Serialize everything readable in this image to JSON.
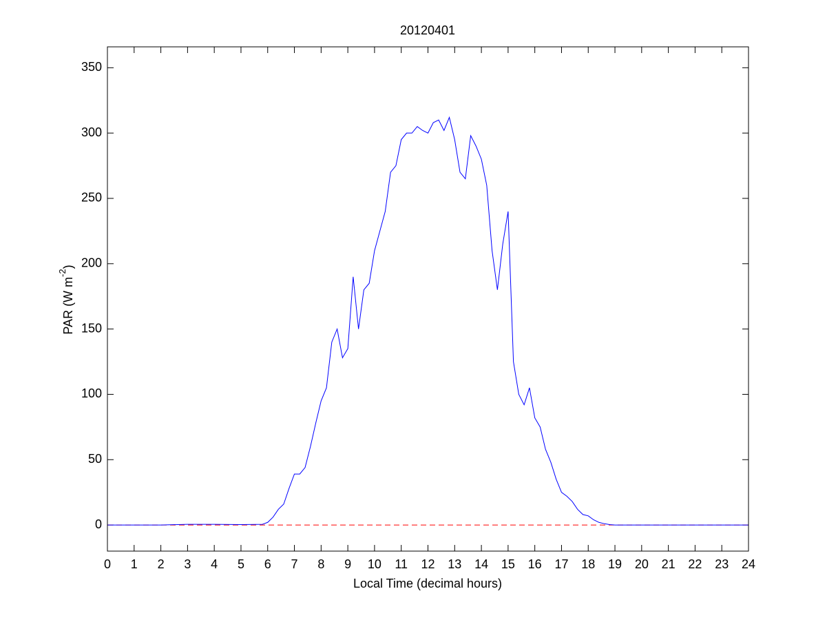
{
  "chart_data": {
    "type": "line",
    "title": "20120401",
    "x_label": "Local Time (decimal hours)",
    "y_label": "PAR (W m",
    "y_label_sup": "-2",
    "y_label_end": ")",
    "x": [
      0,
      1,
      2,
      3,
      4,
      5,
      5.8,
      6.0,
      6.2,
      6.4,
      6.6,
      6.8,
      7.0,
      7.2,
      7.4,
      7.6,
      7.8,
      8.0,
      8.2,
      8.4,
      8.6,
      8.8,
      9.0,
      9.2,
      9.4,
      9.6,
      9.8,
      10.0,
      10.2,
      10.4,
      10.6,
      10.8,
      11.0,
      11.2,
      11.4,
      11.6,
      11.8,
      12.0,
      12.2,
      12.4,
      12.6,
      12.8,
      13.0,
      13.2,
      13.4,
      13.6,
      13.8,
      14.0,
      14.2,
      14.4,
      14.6,
      14.8,
      15.0,
      15.2,
      15.4,
      15.6,
      15.8,
      16.0,
      16.2,
      16.4,
      16.6,
      16.8,
      17.0,
      17.2,
      17.4,
      17.6,
      17.8,
      18.0,
      18.2,
      18.4,
      18.6,
      18.8,
      19.0,
      20,
      21,
      22,
      23,
      24
    ],
    "series": [
      {
        "color": "#0000ff",
        "values": [
          0,
          0,
          0,
          0.5,
          0.5,
          0.3,
          0.5,
          2,
          6,
          12,
          16,
          28,
          39,
          39,
          44,
          60,
          78,
          95,
          105,
          140,
          150,
          128,
          135,
          190,
          150,
          180,
          185,
          210,
          225,
          240,
          270,
          275,
          295,
          300,
          300,
          305,
          302,
          300,
          308,
          310,
          302,
          312,
          295,
          270,
          265,
          298,
          290,
          280,
          260,
          210,
          180,
          215,
          240,
          125,
          100,
          92,
          105,
          82,
          75,
          58,
          48,
          35,
          25,
          22,
          18,
          12,
          8,
          7,
          4,
          2,
          1,
          0.3,
          0,
          0,
          0,
          0,
          0,
          0
        ]
      }
    ],
    "reference_line": {
      "value": 0,
      "color": "#ff0000",
      "dashed": true
    },
    "xlim": [
      0,
      24
    ],
    "ylim": [
      -20,
      366
    ],
    "xticks": [
      0,
      1,
      2,
      3,
      4,
      5,
      6,
      7,
      8,
      9,
      10,
      11,
      12,
      13,
      14,
      15,
      16,
      17,
      18,
      19,
      20,
      21,
      22,
      23,
      24
    ],
    "yticks": [
      0,
      50,
      100,
      150,
      200,
      250,
      300,
      350
    ],
    "grid": false
  }
}
